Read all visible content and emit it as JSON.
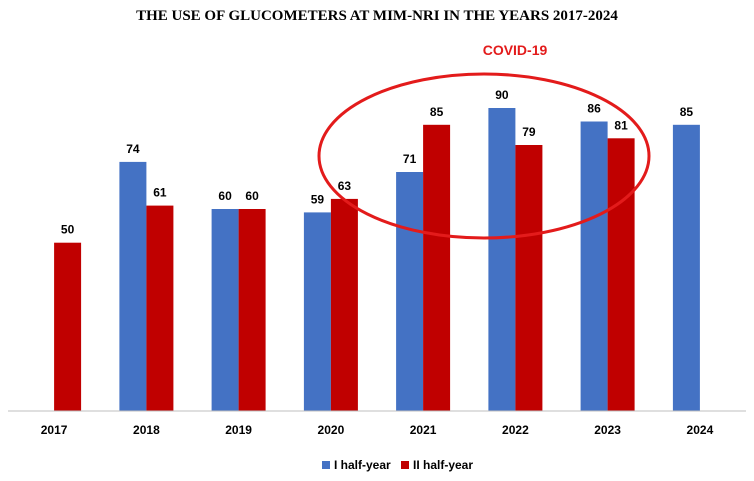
{
  "chart_data": {
    "type": "bar",
    "title": "THE USE OF GLUCOMETERS AT MIM-NRI IN THE YEARS 2017-2024",
    "categories": [
      "2017",
      "2018",
      "2019",
      "2020",
      "2021",
      "2022",
      "2023",
      "2024"
    ],
    "series": [
      {
        "name": "I half-year",
        "color": "#4472C4",
        "values": [
          null,
          74,
          60,
          59,
          71,
          90,
          86,
          85
        ]
      },
      {
        "name": "II half-year",
        "color": "#C00000",
        "values": [
          50,
          61,
          60,
          63,
          85,
          79,
          81,
          null
        ]
      }
    ],
    "ylim": [
      0,
      95
    ],
    "grid": false,
    "legend_position": "bottom-center",
    "annotation": {
      "text": "COVID-19",
      "color": "#E31B1B",
      "shape": "ellipse"
    }
  }
}
